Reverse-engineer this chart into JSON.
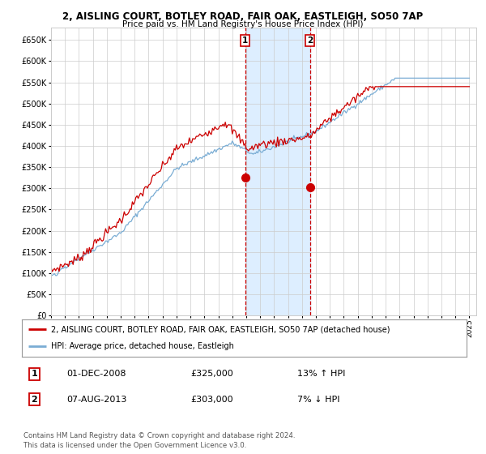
{
  "title1": "2, AISLING COURT, BOTLEY ROAD, FAIR OAK, EASTLEIGH, SO50 7AP",
  "title2": "Price paid vs. HM Land Registry's House Price Index (HPI)",
  "ylim": [
    0,
    680000
  ],
  "yticks": [
    0,
    50000,
    100000,
    150000,
    200000,
    250000,
    300000,
    350000,
    400000,
    450000,
    500000,
    550000,
    600000,
    650000
  ],
  "sale1_date": 2008.92,
  "sale1_price": 325000,
  "sale2_date": 2013.58,
  "sale2_price": 303000,
  "legend_red": "2, AISLING COURT, BOTLEY ROAD, FAIR OAK, EASTLEIGH, SO50 7AP (detached house)",
  "legend_blue": "HPI: Average price, detached house, Eastleigh",
  "annotation1_date": "01-DEC-2008",
  "annotation1_price": "£325,000",
  "annotation1_hpi": "13% ↑ HPI",
  "annotation2_date": "07-AUG-2013",
  "annotation2_price": "£303,000",
  "annotation2_hpi": "7% ↓ HPI",
  "footnote": "Contains HM Land Registry data © Crown copyright and database right 2024.\nThis data is licensed under the Open Government Licence v3.0.",
  "red_color": "#cc0000",
  "blue_color": "#7aadd4",
  "shade_color": "#ddeeff",
  "grid_color": "#cccccc",
  "bg_color": "#ffffff"
}
